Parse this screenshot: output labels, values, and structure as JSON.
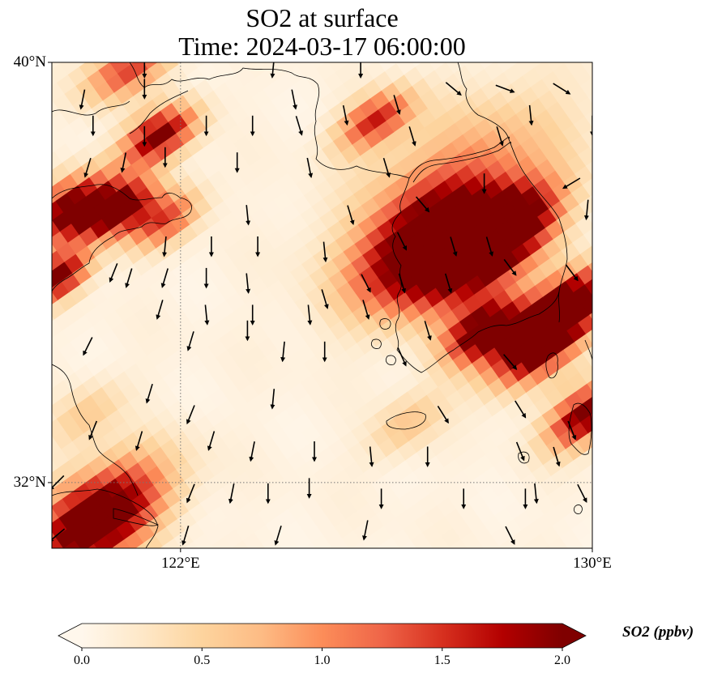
{
  "figure": {
    "title_line1": "SO2 at surface",
    "title_line2": "Time: 2024-03-17 06:00:00"
  },
  "map": {
    "lon_range": [
      119.5,
      130
    ],
    "lat_range": [
      30.75,
      40
    ],
    "lat_ticks": [
      {
        "value": 40,
        "label": "40°N"
      },
      {
        "value": 32,
        "label": "32°N"
      }
    ],
    "lon_ticks": [
      {
        "value": 122,
        "label": "122°E"
      },
      {
        "value": 130,
        "label": "130°E"
      }
    ],
    "gridlines": {
      "lat": [
        32
      ],
      "lon": [
        122
      ],
      "style": "dotted"
    },
    "field": "SO2 concentration (ppbv)",
    "plumes": [
      {
        "name": "liaoning-north",
        "lon": 121.6,
        "lat": 38.6,
        "value": 2.0,
        "spread": 0.45
      },
      {
        "name": "liaodong-tip",
        "lon": 121.0,
        "lat": 39.9,
        "value": 1.4,
        "spread": 0.5
      },
      {
        "name": "shandong-north-west",
        "lon": 119.9,
        "lat": 37.2,
        "value": 2.1,
        "spread": 0.55
      },
      {
        "name": "shandong-north-east",
        "lon": 120.8,
        "lat": 37.2,
        "value": 2.1,
        "spread": 0.45
      },
      {
        "name": "shandong-east",
        "lon": 121.7,
        "lat": 37.0,
        "value": 1.3,
        "spread": 0.45
      },
      {
        "name": "shandong-south",
        "lon": 119.6,
        "lat": 35.9,
        "value": 2.1,
        "spread": 0.4
      },
      {
        "name": "dalian-islands",
        "lon": 125.8,
        "lat": 38.9,
        "value": 1.5,
        "spread": 0.45
      },
      {
        "name": "seoul-west",
        "lon": 126.8,
        "lat": 36.5,
        "value": 2.3,
        "spread": 0.9
      },
      {
        "name": "seoul-east",
        "lon": 127.8,
        "lat": 36.2,
        "value": 1.6,
        "spread": 0.8
      },
      {
        "name": "korea-northeast",
        "lon": 128.4,
        "lat": 36.9,
        "value": 1.8,
        "spread": 0.6
      },
      {
        "name": "korea-east-coast",
        "lon": 129.6,
        "lat": 35.4,
        "value": 2.3,
        "spread": 0.55
      },
      {
        "name": "busan",
        "lon": 128.9,
        "lat": 34.6,
        "value": 2.3,
        "spread": 0.6
      },
      {
        "name": "korea-south-coast",
        "lon": 127.9,
        "lat": 34.9,
        "value": 2.2,
        "spread": 0.5
      },
      {
        "name": "kyushu-north",
        "lon": 129.9,
        "lat": 33.3,
        "value": 2.1,
        "spread": 0.5
      },
      {
        "name": "jeju",
        "lon": 126.4,
        "lat": 33.1,
        "value": 0.55,
        "spread": 0.5
      },
      {
        "name": "shanghai",
        "lon": 120.4,
        "lat": 31.3,
        "value": 2.6,
        "spread": 0.85
      },
      {
        "name": "jiangsu-coast",
        "lon": 120.2,
        "lat": 33.3,
        "value": 0.5,
        "spread": 0.5
      },
      {
        "name": "korea-band",
        "lon": 127.4,
        "lat": 37.7,
        "value": 0.9,
        "spread": 1.3
      }
    ],
    "wind_arrows": [
      [
        121.3,
        39.9,
        0,
        -1
      ],
      [
        123.8,
        39.9,
        -0.1,
        -1
      ],
      [
        125.5,
        39.9,
        0,
        -1
      ],
      [
        127.3,
        39.5,
        0.6,
        -0.5
      ],
      [
        128.3,
        39.5,
        0.8,
        -0.3
      ],
      [
        129.4,
        39.5,
        0.8,
        -0.5
      ],
      [
        120.1,
        39.3,
        -0.2,
        -1
      ],
      [
        121.3,
        39.5,
        0,
        -1
      ],
      [
        124.2,
        39.3,
        0.2,
        -1
      ],
      [
        126.2,
        39.2,
        0.3,
        -1
      ],
      [
        125.2,
        39.0,
        0.2,
        -1
      ],
      [
        128.8,
        39.0,
        0.1,
        -1
      ],
      [
        130,
        38.8,
        0,
        -1
      ],
      [
        120.3,
        38.8,
        0,
        -1
      ],
      [
        121.3,
        38.6,
        0,
        -1
      ],
      [
        122.5,
        38.8,
        0,
        -1
      ],
      [
        123.4,
        38.8,
        0,
        -1
      ],
      [
        124.3,
        38.8,
        0.3,
        -1
      ],
      [
        126.5,
        38.6,
        0.3,
        -1
      ],
      [
        128.2,
        38.6,
        0.3,
        -1
      ],
      [
        120.2,
        38.0,
        -0.3,
        -1
      ],
      [
        120.9,
        38.1,
        -0.2,
        -1
      ],
      [
        121.7,
        38.2,
        0,
        -1
      ],
      [
        123.1,
        38.1,
        0,
        -1
      ],
      [
        124.5,
        38.0,
        0.2,
        -1
      ],
      [
        126.0,
        38.0,
        0.3,
        -1
      ],
      [
        127.9,
        37.7,
        0,
        -1
      ],
      [
        129.6,
        37.7,
        -0.5,
        -0.3
      ],
      [
        123.3,
        37.1,
        0.1,
        -1
      ],
      [
        125.3,
        37.1,
        0.3,
        -1
      ],
      [
        126.7,
        37.3,
        0.6,
        -0.7
      ],
      [
        129.9,
        37.2,
        -0.1,
        -1
      ],
      [
        121.7,
        36.5,
        -0.1,
        -1
      ],
      [
        122.6,
        36.5,
        0,
        -1
      ],
      [
        123.5,
        36.5,
        0,
        -1
      ],
      [
        124.8,
        36.4,
        0.1,
        -1
      ],
      [
        126.3,
        36.6,
        0.4,
        -0.8
      ],
      [
        127.3,
        36.5,
        0.3,
        -1
      ],
      [
        128.0,
        36.5,
        0.3,
        -1
      ],
      [
        120.7,
        36.0,
        -0.4,
        -1
      ],
      [
        121.0,
        35.9,
        -0.3,
        -1
      ],
      [
        121.7,
        35.9,
        -0.3,
        -1
      ],
      [
        122.5,
        35.9,
        0,
        -1
      ],
      [
        123.3,
        35.8,
        0.1,
        -1
      ],
      [
        124.8,
        35.5,
        0.3,
        -1
      ],
      [
        125.6,
        35.8,
        0.4,
        -0.8
      ],
      [
        126.3,
        35.8,
        0.3,
        -1
      ],
      [
        127.2,
        35.8,
        0.3,
        -1
      ],
      [
        128.4,
        36.1,
        0.6,
        -0.8
      ],
      [
        129.6,
        36.0,
        0.6,
        -0.8
      ],
      [
        121.6,
        35.3,
        -0.3,
        -1
      ],
      [
        122.5,
        35.2,
        0.1,
        -1
      ],
      [
        123.4,
        35.2,
        0,
        -1
      ],
      [
        124.5,
        35.2,
        0.1,
        -1
      ],
      [
        125.6,
        35.3,
        0.3,
        -1
      ],
      [
        126.8,
        34.9,
        0.3,
        -1
      ],
      [
        120.2,
        34.6,
        -0.5,
        -1
      ],
      [
        122.2,
        34.7,
        -0.3,
        -1
      ],
      [
        123.3,
        34.9,
        0,
        -1
      ],
      [
        124.0,
        34.5,
        -0.1,
        -1
      ],
      [
        124.8,
        34.5,
        0,
        -1
      ],
      [
        126.3,
        34.4,
        0.4,
        -0.9
      ],
      [
        128.4,
        34.3,
        0.6,
        -0.7
      ],
      [
        121.4,
        33.7,
        -0.3,
        -1
      ],
      [
        122.2,
        33.3,
        -0.4,
        -1
      ],
      [
        123.8,
        33.6,
        -0.1,
        -1
      ],
      [
        127.1,
        33.3,
        0.5,
        -0.8
      ],
      [
        128.6,
        33.4,
        0.5,
        -0.8
      ],
      [
        129.6,
        33.0,
        0.4,
        -1
      ],
      [
        120.3,
        33.0,
        -0.4,
        -1
      ],
      [
        121.2,
        32.8,
        -0.3,
        -1
      ],
      [
        122.6,
        32.8,
        -0.3,
        -1
      ],
      [
        123.4,
        32.6,
        -0.2,
        -1
      ],
      [
        124.6,
        32.6,
        0,
        -1
      ],
      [
        125.7,
        32.5,
        0.1,
        -1
      ],
      [
        126.8,
        32.5,
        0,
        -1
      ],
      [
        128.6,
        32.6,
        0.4,
        -1
      ],
      [
        129.3,
        32.5,
        0.3,
        -1
      ],
      [
        119.6,
        32.0,
        -0.6,
        -0.6
      ],
      [
        122.2,
        31.8,
        -0.4,
        -1
      ],
      [
        123.0,
        31.8,
        -0.2,
        -1
      ],
      [
        123.7,
        31.8,
        0,
        -1
      ],
      [
        124.5,
        31.9,
        0,
        -1
      ],
      [
        125.9,
        31.7,
        0,
        -1
      ],
      [
        127.5,
        31.7,
        0,
        -1
      ],
      [
        128.7,
        31.7,
        0,
        -1
      ],
      [
        128.9,
        31.8,
        0.1,
        -1
      ],
      [
        129.8,
        31.8,
        0.4,
        -0.8
      ],
      [
        119.6,
        31.0,
        -0.6,
        -0.5
      ],
      [
        122.1,
        31.0,
        -0.3,
        -1
      ],
      [
        123.9,
        31.0,
        -0.3,
        -1
      ],
      [
        125.6,
        31.1,
        -0.2,
        -1
      ],
      [
        128.4,
        31.0,
        0.4,
        -0.8
      ]
    ]
  },
  "colorbar": {
    "label": "SO2 (ppbv)",
    "min": 0.0,
    "max": 2.0,
    "extend": "both",
    "ticks": [
      {
        "value": 0.0,
        "label": "0.0"
      },
      {
        "value": 0.5,
        "label": "0.5"
      },
      {
        "value": 1.0,
        "label": "1.0"
      },
      {
        "value": 1.5,
        "label": "1.5"
      },
      {
        "value": 2.0,
        "label": "2.0"
      }
    ],
    "colormap": "OrRd",
    "stops": [
      "#fff7ec",
      "#fee8c8",
      "#fdd49e",
      "#fdbb84",
      "#fc8d59",
      "#ef6548",
      "#d7301f",
      "#b30000",
      "#7f0000"
    ]
  }
}
